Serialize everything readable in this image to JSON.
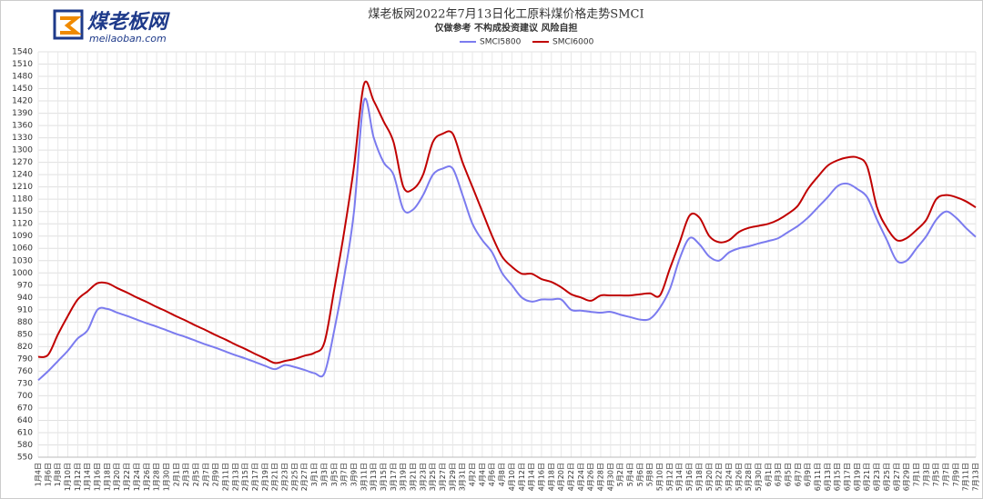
{
  "logo": {
    "name": "煤老板网",
    "url": "meilaoban.com"
  },
  "chart_data": {
    "type": "line",
    "title": "煤老板网2022年7月13日化工原料煤价格走势SMCI",
    "subtitle": "仅做参考 不构成投资建议 风险自担",
    "categories": [
      "1月4日",
      "1月6日",
      "1月8日",
      "1月10日",
      "1月12日",
      "1月14日",
      "1月16日",
      "1月18日",
      "1月20日",
      "1月22日",
      "1月24日",
      "1月26日",
      "1月28日",
      "1月30日",
      "2月1日",
      "2月3日",
      "2月5日",
      "2月7日",
      "2月9日",
      "2月11日",
      "2月13日",
      "2月15日",
      "2月17日",
      "2月19日",
      "2月21日",
      "2月23日",
      "2月25日",
      "2月27日",
      "3月1日",
      "3月3日",
      "3月5日",
      "3月7日",
      "3月9日",
      "3月11日",
      "3月13日",
      "3月15日",
      "3月17日",
      "3月19日",
      "3月21日",
      "3月23日",
      "3月25日",
      "3月27日",
      "3月29日",
      "3月31日",
      "4月2日",
      "4月4日",
      "4月6日",
      "4月8日",
      "4月10日",
      "4月12日",
      "4月14日",
      "4月16日",
      "4月18日",
      "4月20日",
      "4月22日",
      "4月24日",
      "4月26日",
      "4月28日",
      "4月30日",
      "5月2日",
      "5月4日",
      "5月6日",
      "5月8日",
      "5月10日",
      "5月12日",
      "5月14日",
      "5月16日",
      "5月18日",
      "5月20日",
      "5月22日",
      "5月24日",
      "5月26日",
      "5月28日",
      "5月30日",
      "6月1日",
      "6月3日",
      "6月5日",
      "6月7日",
      "6月9日",
      "6月11日",
      "6月13日",
      "6月15日",
      "6月17日",
      "6月19日",
      "6月21日",
      "6月23日",
      "6月25日",
      "6月27日",
      "6月29日",
      "7月1日",
      "7月3日",
      "7月5日",
      "7月7日",
      "7月9日",
      "7月11日",
      "7月13日"
    ],
    "series": [
      {
        "name": "SMCI5800",
        "color": "#7b7bef",
        "values": [
          738,
          760,
          785,
          810,
          840,
          860,
          910,
          912,
          903,
          895,
          886,
          877,
          869,
          860,
          851,
          843,
          834,
          825,
          817,
          808,
          799,
          791,
          782,
          773,
          765,
          775,
          770,
          763,
          755,
          755,
          860,
          990,
          1150,
          1420,
          1330,
          1270,
          1240,
          1155,
          1155,
          1190,
          1240,
          1255,
          1255,
          1190,
          1120,
          1080,
          1050,
          1000,
          970,
          940,
          930,
          935,
          935,
          935,
          910,
          908,
          905,
          903,
          905,
          898,
          892,
          886,
          888,
          915,
          960,
          1035,
          1085,
          1070,
          1040,
          1030,
          1050,
          1060,
          1065,
          1072,
          1078,
          1085,
          1100,
          1115,
          1135,
          1160,
          1185,
          1212,
          1218,
          1205,
          1185,
          1130,
          1080,
          1030,
          1030,
          1060,
          1090,
          1130,
          1150,
          1135,
          1110,
          1088
        ]
      },
      {
        "name": "SMCI6000",
        "color": "#c00000",
        "values": [
          795,
          800,
          850,
          895,
          935,
          955,
          975,
          975,
          963,
          952,
          940,
          929,
          917,
          906,
          894,
          883,
          871,
          860,
          848,
          837,
          825,
          814,
          802,
          791,
          780,
          785,
          790,
          798,
          805,
          830,
          960,
          1100,
          1260,
          1460,
          1420,
          1370,
          1320,
          1210,
          1205,
          1240,
          1320,
          1340,
          1340,
          1270,
          1210,
          1150,
          1090,
          1040,
          1015,
          998,
          998,
          985,
          978,
          965,
          948,
          940,
          932,
          945,
          945,
          945,
          945,
          948,
          950,
          945,
          1010,
          1075,
          1140,
          1135,
          1090,
          1075,
          1080,
          1100,
          1110,
          1115,
          1120,
          1130,
          1145,
          1165,
          1205,
          1235,
          1262,
          1275,
          1282,
          1282,
          1260,
          1160,
          1110,
          1080,
          1085,
          1105,
          1130,
          1180,
          1190,
          1185,
          1175,
          1160
        ]
      }
    ],
    "ylim": [
      550,
      1540
    ],
    "yticks": [
      550,
      580,
      610,
      640,
      670,
      700,
      730,
      760,
      790,
      820,
      850,
      880,
      910,
      940,
      970,
      1000,
      1030,
      1060,
      1090,
      1120,
      1150,
      1180,
      1210,
      1240,
      1270,
      1300,
      1330,
      1360,
      1390,
      1420,
      1450,
      1480,
      1510,
      1540
    ],
    "grid": true,
    "legend": "top"
  }
}
